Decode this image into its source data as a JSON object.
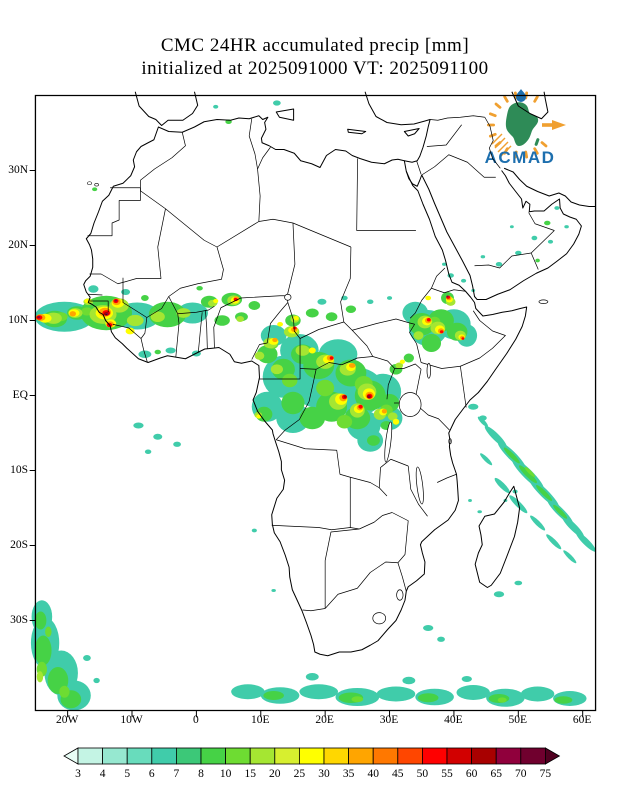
{
  "title": {
    "line1": "CMC 24HR accumulated precip [mm]",
    "line2": "initialized at 2025091000 VT: 2025091100"
  },
  "logo": {
    "name": "ACMAD",
    "text_color": "#1d6fae",
    "globe_color": "#2e8b57",
    "accent_color": "#f0a030",
    "drop_color": "#1d6fae"
  },
  "axes": {
    "y_ticks": [
      {
        "label": "30N",
        "deg": 30
      },
      {
        "label": "20N",
        "deg": 20
      },
      {
        "label": "10N",
        "deg": 10
      },
      {
        "label": "EQ",
        "deg": 0
      },
      {
        "label": "10S",
        "deg": -10
      },
      {
        "label": "20S",
        "deg": -20
      },
      {
        "label": "30S",
        "deg": -30
      }
    ],
    "x_ticks": [
      {
        "label": "20W",
        "deg": -20
      },
      {
        "label": "10W",
        "deg": -10
      },
      {
        "label": "0",
        "deg": 0
      },
      {
        "label": "10E",
        "deg": 10
      },
      {
        "label": "20E",
        "deg": 20
      },
      {
        "label": "30E",
        "deg": 30
      },
      {
        "label": "40E",
        "deg": 40
      },
      {
        "label": "50E",
        "deg": 50
      },
      {
        "label": "60E",
        "deg": 60
      }
    ]
  },
  "colorbar": {
    "labels": [
      "3",
      "4",
      "5",
      "6",
      "7",
      "8",
      "10",
      "15",
      "20",
      "25",
      "30",
      "35",
      "40",
      "45",
      "50",
      "55",
      "60",
      "65",
      "70",
      "75"
    ],
    "colors": [
      "#e8fdf5",
      "#c4f4e4",
      "#96e8d0",
      "#68dcbc",
      "#40ccaa",
      "#3cc878",
      "#46d246",
      "#6edc32",
      "#a5e632",
      "#d7ef2f",
      "#ffff00",
      "#ffd700",
      "#ffa500",
      "#ff7800",
      "#ff4600",
      "#ff0000",
      "#d20000",
      "#a80000",
      "#90003c",
      "#70002e",
      "#500020"
    ]
  }
}
